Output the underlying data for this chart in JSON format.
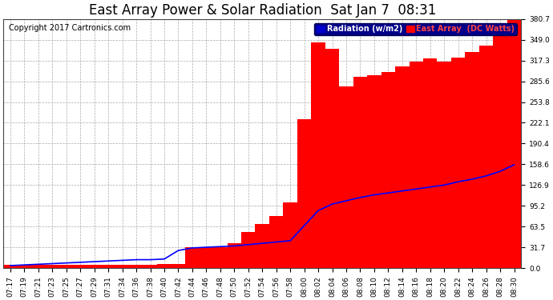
{
  "title": "East Array Power & Solar Radiation  Sat Jan 7  08:31",
  "copyright": "Copyright 2017 Cartronics.com",
  "legend_labels": [
    "Radiation (w/m2)",
    "East Array  (DC Watts)"
  ],
  "legend_colors_bg": [
    "#0000cc",
    "#ff0000"
  ],
  "legend_text_colors": [
    "#ffffff",
    "#ff0000"
  ],
  "bar_color": "#ff0000",
  "line_color": "#0000ff",
  "bg_color": "#ffffff",
  "grid_color": "#aaaaaa",
  "title_fontsize": 12,
  "copyright_fontsize": 7,
  "tick_fontsize": 6.5,
  "ytick_labels": [
    "0.0",
    "31.7",
    "63.5",
    "95.2",
    "126.9",
    "158.6",
    "190.4",
    "222.1",
    "253.8",
    "285.6",
    "317.3",
    "349.0",
    "380.7"
  ],
  "ytick_values": [
    0.0,
    31.7,
    63.5,
    95.2,
    126.9,
    158.6,
    190.4,
    222.1,
    253.8,
    285.6,
    317.3,
    349.0,
    380.7
  ],
  "ymax": 380.7,
  "xtick_labels": [
    "07:17",
    "07:19",
    "07:21",
    "07:23",
    "07:25",
    "07:27",
    "07:29",
    "07:31",
    "07:34",
    "07:36",
    "07:38",
    "07:40",
    "07:42",
    "07:44",
    "07:46",
    "07:48",
    "07:50",
    "07:52",
    "07:54",
    "07:56",
    "07:58",
    "08:00",
    "08:02",
    "08:04",
    "08:06",
    "08:08",
    "08:10",
    "08:12",
    "08:14",
    "08:16",
    "08:18",
    "08:20",
    "08:22",
    "08:24",
    "08:26",
    "08:28",
    "08:30"
  ],
  "bar_values": [
    5.0,
    5.0,
    5.0,
    5.0,
    5.0,
    5.0,
    5.0,
    5.0,
    5.0,
    5.0,
    5.0,
    6.0,
    6.0,
    32.0,
    32.0,
    32.0,
    38.0,
    55.0,
    68.0,
    80.0,
    100.0,
    228.0,
    345.0,
    335.0,
    278.0,
    292.0,
    295.0,
    300.0,
    308.0,
    315.0,
    320.0,
    315.0,
    322.0,
    330.0,
    340.0,
    355.0,
    380.7
  ],
  "line_values": [
    4.0,
    5.0,
    6.0,
    7.0,
    8.0,
    9.0,
    10.0,
    11.0,
    12.0,
    13.0,
    13.0,
    14.0,
    27.0,
    31.0,
    32.0,
    33.0,
    34.0,
    36.0,
    38.0,
    40.0,
    42.0,
    65.0,
    88.0,
    98.0,
    103.0,
    108.0,
    112.0,
    115.0,
    118.0,
    121.0,
    124.0,
    127.0,
    132.0,
    136.0,
    141.0,
    148.0,
    158.0
  ]
}
